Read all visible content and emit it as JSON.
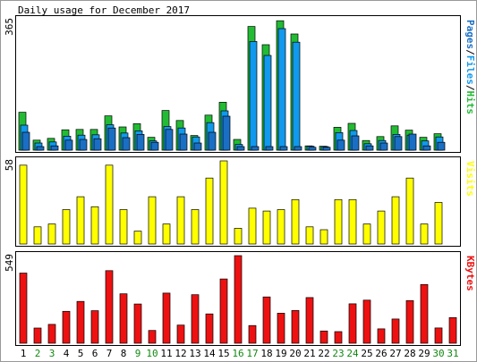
{
  "chart_data": {
    "type": "bar",
    "title": "Daily usage for December 2017",
    "categories": [
      "1",
      "2",
      "3",
      "4",
      "5",
      "6",
      "7",
      "8",
      "9",
      "10",
      "11",
      "12",
      "13",
      "14",
      "15",
      "16",
      "17",
      "18",
      "19",
      "20",
      "21",
      "22",
      "23",
      "24",
      "25",
      "26",
      "27",
      "28",
      "29",
      "30",
      "31"
    ],
    "weekend_days": [
      "2",
      "3",
      "9",
      "10",
      "16",
      "17",
      "23",
      "24",
      "30",
      "31"
    ],
    "colors": {
      "hits": "#22bb33",
      "files": "#1199ee",
      "pages": "#1a6fc4",
      "visits": "#ffff00",
      "kbytes": "#ee1111",
      "weekday_label": "#000000",
      "weekend_label": "#118811",
      "background": "#ffffff"
    },
    "panels": [
      {
        "id": "usage",
        "ymax": 365,
        "ymax_label": "365",
        "legend": [
          {
            "text": "Pages",
            "color": "#1a6fc4"
          },
          {
            "text": "/",
            "color": "#000000"
          },
          {
            "text": "Files",
            "color": "#1199ee"
          },
          {
            "text": "/",
            "color": "#000000"
          },
          {
            "text": "Hits",
            "color": "#22bb33"
          }
        ],
        "series": [
          {
            "name": "Hits",
            "color": "#22bb33",
            "values": [
              106,
              28,
              33,
              57,
              58,
              58,
              96,
              65,
              74,
              36,
              111,
              83,
              41,
              98,
              134,
              30,
              346,
              295,
              362,
              325,
              12,
              11,
              64,
              75,
              27,
              38,
              68,
              56,
              36,
              46,
              0
            ]
          },
          {
            "name": "Files",
            "color": "#1199ee",
            "values": [
              70,
              20,
              23,
              39,
              42,
              43,
              71,
              48,
              54,
              26,
              66,
              62,
              37,
              77,
              110,
              16,
              304,
              265,
              340,
              302,
              11,
              10,
              49,
              55,
              18,
              27,
              44,
              42,
              26,
              37,
              0
            ]
          },
          {
            "name": "Pages",
            "color": "#1a6fc4",
            "values": [
              50,
              10,
              12,
              28,
              30,
              32,
              62,
              35,
              44,
              22,
              58,
              45,
              20,
              50,
              95,
              10,
              10,
              10,
              10,
              10,
              8,
              8,
              28,
              40,
              12,
              20,
              38,
              45,
              12,
              22,
              0
            ]
          }
        ]
      },
      {
        "id": "visits",
        "ymax": 58,
        "ymax_label": "58",
        "legend": [
          {
            "text": "Visits",
            "color": "#ffff00"
          }
        ],
        "series": [
          {
            "name": "Visits",
            "color": "#ffff00",
            "values": [
              55,
              12,
              14,
              24,
              33,
              26,
              55,
              24,
              9,
              33,
              14,
              33,
              24,
              46,
              58,
              11,
              25,
              23,
              24,
              31,
              12,
              10,
              31,
              31,
              14,
              23,
              33,
              46,
              14,
              29,
              0
            ]
          }
        ]
      },
      {
        "id": "kbytes",
        "ymax": 549,
        "ymax_label": "549",
        "legend": [
          {
            "text": "KBytes",
            "color": "#ee1111"
          }
        ],
        "series": [
          {
            "name": "KBytes",
            "color": "#ee1111",
            "values": [
              440,
              95,
              118,
              200,
              262,
              204,
              455,
              310,
              246,
              80,
              314,
              114,
              304,
              184,
              403,
              549,
              111,
              290,
              188,
              205,
              286,
              77,
              73,
              247,
              270,
              90,
              152,
              267,
              368,
              96,
              161
            ]
          }
        ]
      }
    ]
  }
}
